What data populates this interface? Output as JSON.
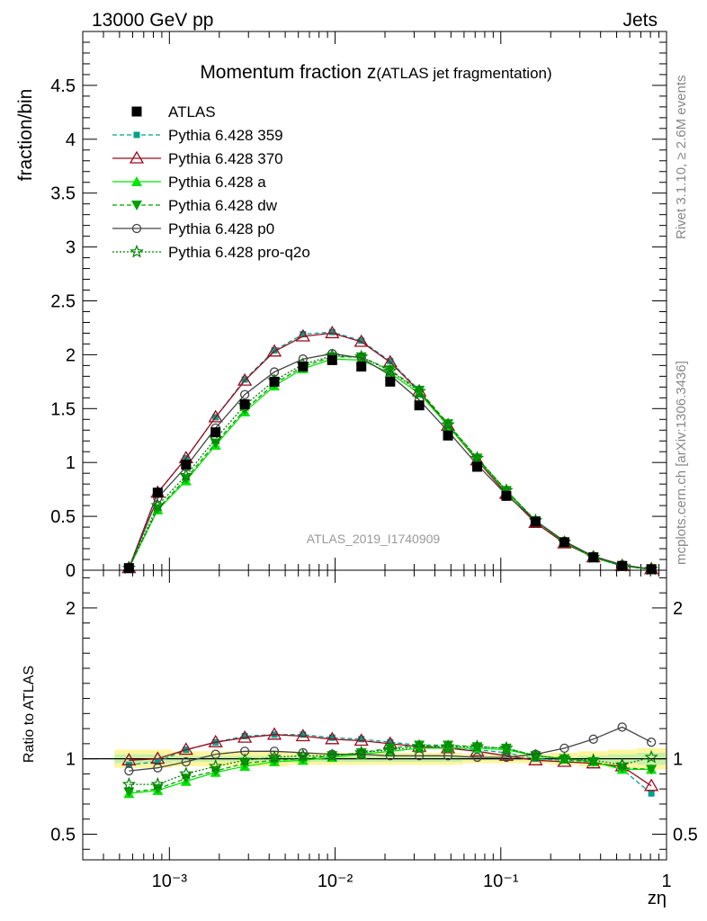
{
  "header": {
    "left": "13000 GeV pp",
    "right": "Jets"
  },
  "side_labels": {
    "rivet": "Rivet 3.1.10, ≥ 2.6M events",
    "mcplots": "mcplots.cern.ch [arXiv:1306.3436]"
  },
  "chart_data": [
    {
      "type": "line",
      "panel": "main",
      "title_main": "Momentum fraction z",
      "title_sub": "(ATLAS jet fragmentation)",
      "watermark": "ATLAS_2019_I1740909",
      "ylabel": "fraction/bin",
      "xscale": "log",
      "xlim": [
        0.0003,
        1
      ],
      "ylim": [
        0,
        5.0
      ],
      "yticks": [
        0,
        0.5,
        1,
        1.5,
        2,
        2.5,
        3,
        3.5,
        4,
        4.5
      ],
      "ytick_labels": [
        "0",
        "0.5",
        "1",
        "1.5",
        "2",
        "2.5",
        "3",
        "3.5",
        "4",
        "4.5"
      ],
      "legend_position": "top-left",
      "x": [
        0.00057,
        0.00085,
        0.00126,
        0.0019,
        0.00285,
        0.0043,
        0.0064,
        0.0096,
        0.0144,
        0.0215,
        0.0322,
        0.048,
        0.072,
        0.108,
        0.162,
        0.242,
        0.362,
        0.54,
        0.81
      ],
      "data": {
        "name": "ATLAS",
        "values": [
          0.02,
          0.72,
          0.98,
          1.28,
          1.54,
          1.75,
          1.89,
          1.95,
          1.89,
          1.75,
          1.53,
          1.25,
          0.96,
          0.69,
          0.45,
          0.26,
          0.12,
          0.04,
          0.01
        ]
      },
      "series": [
        {
          "name": "Pythia 6.428 359",
          "color": "#00a08a",
          "style": "dashed",
          "marker": "square-small",
          "values": [
            0.02,
            0.72,
            1.04,
            1.42,
            1.77,
            2.04,
            2.19,
            2.21,
            2.13,
            1.94,
            1.67,
            1.35,
            1.04,
            0.74,
            0.46,
            0.26,
            0.12,
            0.04,
            0.01
          ]
        },
        {
          "name": "Pythia 6.428 370",
          "color": "#9b0a1e",
          "style": "solid",
          "marker": "triangle-open",
          "values": [
            0.02,
            0.72,
            1.04,
            1.42,
            1.76,
            2.03,
            2.17,
            2.2,
            2.12,
            1.93,
            1.66,
            1.34,
            1.02,
            0.71,
            0.44,
            0.25,
            0.12,
            0.04,
            0.01
          ]
        },
        {
          "name": "Pythia 6.428 a",
          "color": "#00e600",
          "style": "solid",
          "marker": "triangle-filled",
          "values": [
            0.02,
            0.56,
            0.83,
            1.16,
            1.47,
            1.71,
            1.87,
            1.96,
            1.95,
            1.83,
            1.64,
            1.34,
            1.03,
            0.73,
            0.46,
            0.26,
            0.12,
            0.04,
            0.01
          ]
        },
        {
          "name": "Pythia 6.428 dw",
          "color": "#00a000",
          "style": "dashed",
          "marker": "triangle-down",
          "values": [
            0.02,
            0.57,
            0.85,
            1.18,
            1.49,
            1.73,
            1.89,
            1.98,
            1.98,
            1.86,
            1.67,
            1.36,
            1.04,
            0.74,
            0.46,
            0.26,
            0.12,
            0.04,
            0.01
          ]
        },
        {
          "name": "Pythia 6.428 p0",
          "color": "#444444",
          "style": "solid",
          "marker": "circle-open",
          "values": [
            0.02,
            0.67,
            0.96,
            1.32,
            1.63,
            1.84,
            1.96,
            2.01,
            1.97,
            1.81,
            1.58,
            1.29,
            0.98,
            0.7,
            0.46,
            0.27,
            0.13,
            0.05,
            0.01
          ]
        },
        {
          "name": "Pythia 6.428 pro-q2o",
          "color": "#008000",
          "style": "dotted",
          "marker": "star-open",
          "values": [
            0.02,
            0.6,
            0.88,
            1.22,
            1.53,
            1.76,
            1.91,
            1.99,
            1.98,
            1.85,
            1.66,
            1.35,
            1.04,
            0.74,
            0.46,
            0.26,
            0.12,
            0.04,
            0.01
          ]
        }
      ]
    },
    {
      "type": "line",
      "panel": "ratio",
      "ylabel": "Ratio to ATLAS",
      "xlabel": "zη",
      "xscale": "log",
      "xlim": [
        0.0003,
        1
      ],
      "ylim": [
        0.33,
        2.25
      ],
      "yticks": [
        0.5,
        1,
        2
      ],
      "ytick_labels": [
        "0.5",
        "1",
        "2"
      ],
      "xtick_labels": [
        "10⁻³",
        "10⁻²",
        "10⁻¹",
        "1"
      ],
      "reference_line": 1,
      "x": [
        0.00057,
        0.00085,
        0.00126,
        0.0019,
        0.00285,
        0.0043,
        0.0064,
        0.0096,
        0.0144,
        0.0215,
        0.0322,
        0.048,
        0.072,
        0.108,
        0.162,
        0.242,
        0.362,
        0.54,
        0.81
      ],
      "band_green_halfwidth": [
        0.03,
        0.03,
        0.02,
        0.02,
        0.02,
        0.02,
        0.02,
        0.02,
        0.02,
        0.02,
        0.02,
        0.02,
        0.01,
        0.01,
        0.01,
        0.01,
        0.02,
        0.03,
        0.04
      ],
      "band_yellow_halfwidth": [
        0.06,
        0.06,
        0.05,
        0.05,
        0.05,
        0.05,
        0.04,
        0.04,
        0.04,
        0.04,
        0.04,
        0.04,
        0.03,
        0.03,
        0.03,
        0.04,
        0.05,
        0.06,
        0.07
      ],
      "series": [
        {
          "name": "Pythia 6.428 359",
          "values": [
            0.96,
            0.98,
            1.06,
            1.11,
            1.15,
            1.16,
            1.16,
            1.14,
            1.13,
            1.11,
            1.09,
            1.08,
            1.06,
            1.04,
            1.0,
            0.99,
            0.98,
            0.93,
            0.77
          ]
        },
        {
          "name": "Pythia 6.428 370",
          "values": [
            0.99,
            1.0,
            1.06,
            1.11,
            1.14,
            1.16,
            1.15,
            1.13,
            1.12,
            1.1,
            1.08,
            1.07,
            1.05,
            1.02,
            0.99,
            0.98,
            0.97,
            0.95,
            0.82
          ]
        },
        {
          "name": "Pythia 6.428 a",
          "values": [
            0.77,
            0.79,
            0.85,
            0.91,
            0.95,
            0.98,
            0.99,
            1.01,
            1.03,
            1.05,
            1.07,
            1.07,
            1.07,
            1.06,
            1.02,
            1.0,
            0.98,
            0.93,
            0.93
          ]
        },
        {
          "name": "Pythia 6.428 dw",
          "values": [
            0.78,
            0.8,
            0.87,
            0.92,
            0.97,
            0.99,
            1.0,
            1.02,
            1.04,
            1.07,
            1.09,
            1.09,
            1.08,
            1.07,
            1.02,
            1.0,
            0.98,
            0.94,
            0.93
          ]
        },
        {
          "name": "Pythia 6.428 p0",
          "values": [
            0.92,
            0.94,
            0.98,
            1.03,
            1.05,
            1.05,
            1.04,
            1.03,
            1.03,
            1.02,
            1.02,
            1.02,
            1.01,
            1.01,
            1.03,
            1.07,
            1.13,
            1.21,
            1.11
          ]
        },
        {
          "name": "Pythia 6.428 pro-q2o",
          "values": [
            0.83,
            0.83,
            0.9,
            0.95,
            0.99,
            1.01,
            1.02,
            1.02,
            1.04,
            1.06,
            1.08,
            1.08,
            1.08,
            1.07,
            1.02,
            1.0,
            0.99,
            0.96,
            1.01
          ]
        }
      ]
    }
  ]
}
